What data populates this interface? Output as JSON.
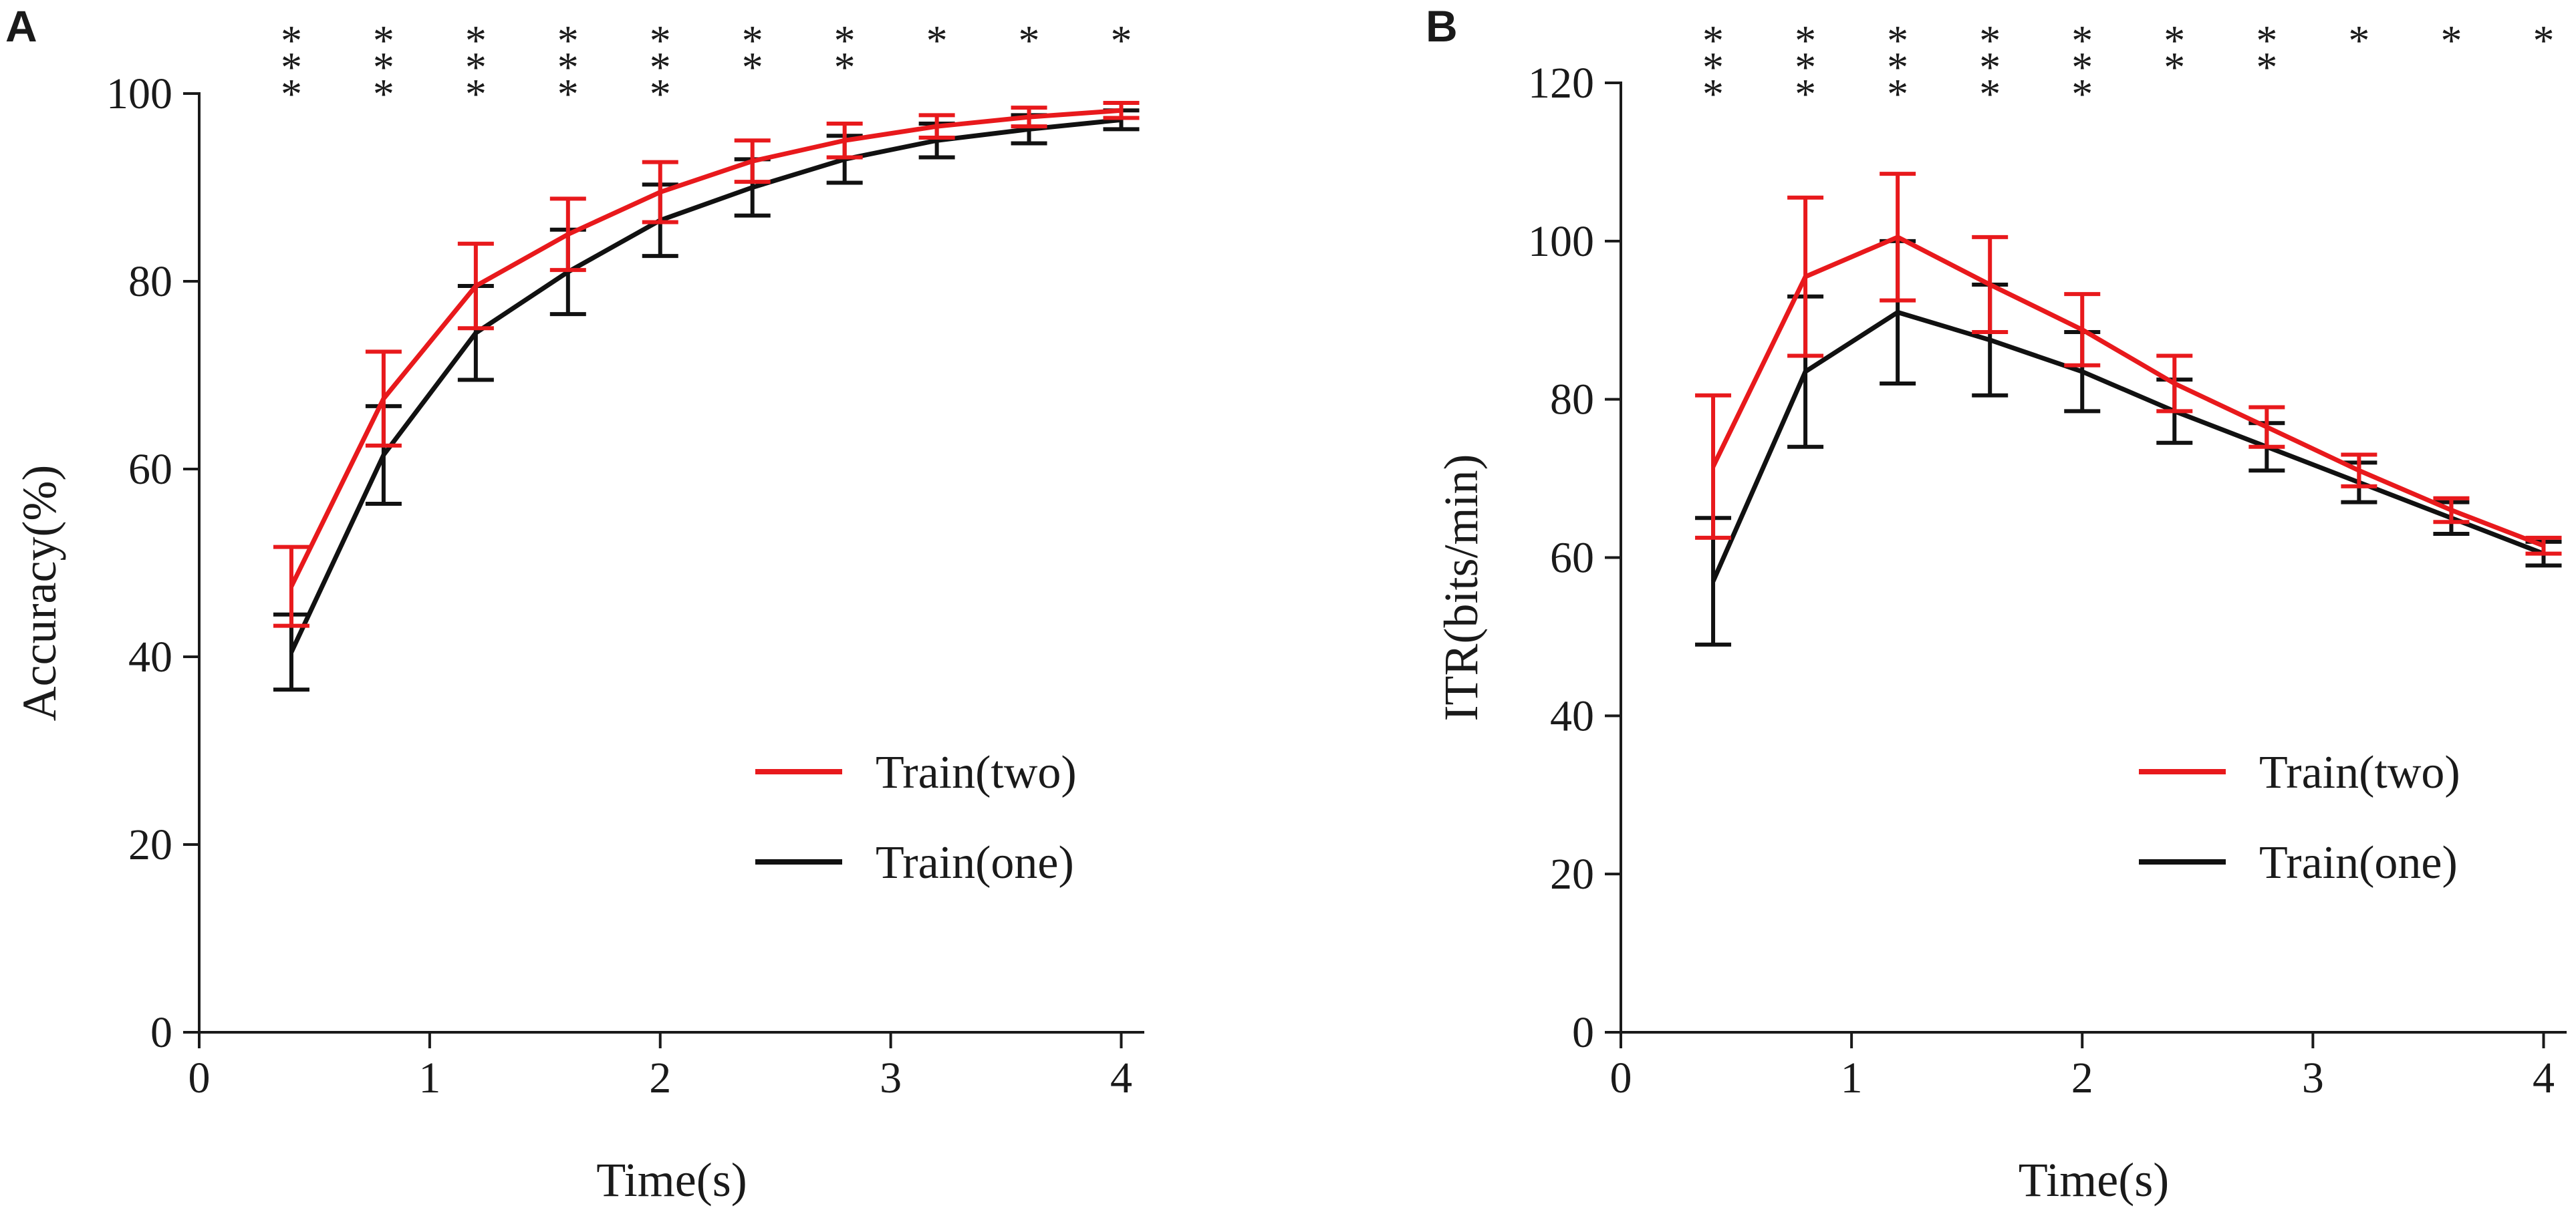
{
  "chart_data": [
    {
      "type": "line",
      "panel_label": "A",
      "title": "",
      "xlabel": "Time(s)",
      "ylabel": "Accuracy(%)",
      "xlim": [
        0,
        4.1
      ],
      "ylim": [
        0,
        100
      ],
      "xticks": [
        0,
        1,
        2,
        3,
        4
      ],
      "xtick_labels": [
        "0",
        "1",
        "2",
        "3",
        "4"
      ],
      "yticks": [
        0,
        20,
        40,
        60,
        80,
        100
      ],
      "ytick_labels": [
        "0",
        "20",
        "40",
        "60",
        "80",
        "100"
      ],
      "x": [
        0.4,
        0.8,
        1.2,
        1.6,
        2.0,
        2.4,
        2.8,
        3.2,
        3.6,
        4.0
      ],
      "series": [
        {
          "name": "Train(two)",
          "color": "#e8191c",
          "values": [
            47.5,
            67.5,
            79.5,
            85.0,
            89.5,
            92.8,
            95.0,
            96.5,
            97.5,
            98.2
          ],
          "error": [
            4.2,
            5.0,
            4.5,
            3.8,
            3.2,
            2.2,
            1.8,
            1.2,
            1.0,
            0.8
          ]
        },
        {
          "name": "Train(one)",
          "color": "#111111",
          "values": [
            40.5,
            61.5,
            74.5,
            81.0,
            86.5,
            90.0,
            93.0,
            95.0,
            96.2,
            97.2
          ],
          "error": [
            4.0,
            5.2,
            5.0,
            4.5,
            3.8,
            3.0,
            2.5,
            1.8,
            1.5,
            1.0
          ]
        }
      ],
      "significance": [
        "***",
        "***",
        "***",
        "***",
        "***",
        "**",
        "**",
        "*",
        "*",
        "*"
      ],
      "legend_position": "lower-right"
    },
    {
      "type": "line",
      "panel_label": "B",
      "title": "",
      "xlabel": "Time(s)",
      "ylabel": "ITR(bits/min)",
      "xlim": [
        0,
        4.1
      ],
      "ylim": [
        0,
        120
      ],
      "xticks": [
        0,
        1,
        2,
        3,
        4
      ],
      "xtick_labels": [
        "0",
        "1",
        "2",
        "3",
        "4"
      ],
      "yticks": [
        0,
        20,
        40,
        60,
        80,
        100,
        120
      ],
      "ytick_labels": [
        "0",
        "20",
        "40",
        "60",
        "80",
        "100",
        "120"
      ],
      "x": [
        0.4,
        0.8,
        1.2,
        1.6,
        2.0,
        2.4,
        2.8,
        3.2,
        3.6,
        4.0
      ],
      "series": [
        {
          "name": "Train(two)",
          "color": "#e8191c",
          "values": [
            71.5,
            95.5,
            100.5,
            94.5,
            88.8,
            82.0,
            76.5,
            71.0,
            66.0,
            61.5
          ],
          "error": [
            9.0,
            10.0,
            8.0,
            6.0,
            4.5,
            3.5,
            2.5,
            2.0,
            1.5,
            1.0
          ]
        },
        {
          "name": "Train(one)",
          "color": "#111111",
          "values": [
            57.0,
            83.5,
            91.0,
            87.5,
            83.5,
            78.5,
            74.0,
            69.5,
            65.0,
            60.5
          ],
          "error": [
            8.0,
            9.5,
            9.0,
            7.0,
            5.0,
            4.0,
            3.0,
            2.5,
            2.0,
            1.5
          ]
        }
      ],
      "significance": [
        "***",
        "***",
        "***",
        "***",
        "***",
        "**",
        "**",
        "*",
        "*",
        "*"
      ],
      "legend_position": "lower-right"
    }
  ]
}
